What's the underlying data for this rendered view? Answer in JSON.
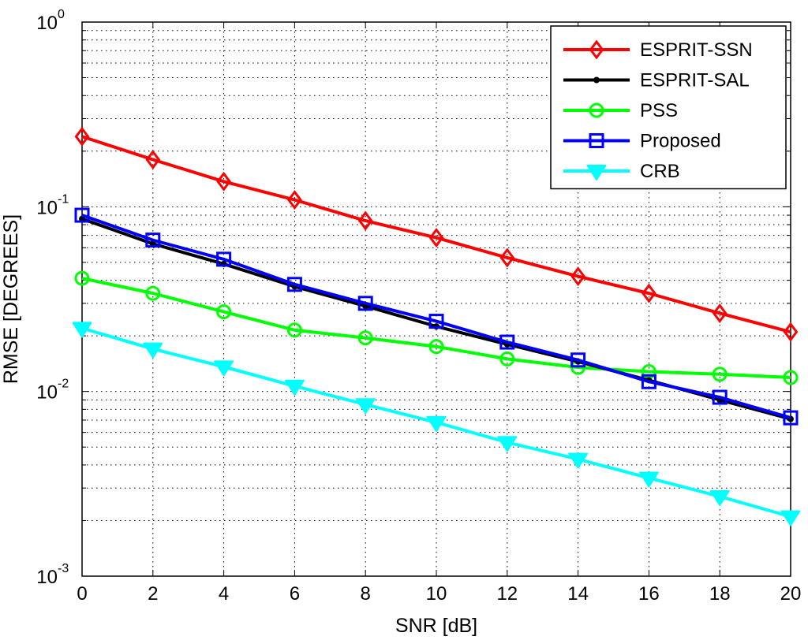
{
  "chart_data": {
    "type": "line",
    "y_scale": "log",
    "grid": true,
    "xlabel": "SNR [dB]",
    "ylabel": "RMSE [DEGREES]",
    "xlim": [
      0,
      20
    ],
    "ylim": [
      0.001,
      1
    ],
    "x_ticks": [
      "0",
      "2",
      "4",
      "6",
      "8",
      "10",
      "12",
      "14",
      "16",
      "18",
      "20"
    ],
    "y_ticks": [
      {
        "base": "10",
        "exp": "-3"
      },
      {
        "base": "10",
        "exp": "-2"
      },
      {
        "base": "10",
        "exp": "-1"
      },
      {
        "base": "10",
        "exp": "0"
      }
    ],
    "legend_position": "top-right",
    "x": [
      0,
      2,
      4,
      6,
      8,
      10,
      12,
      14,
      16,
      18,
      20
    ],
    "series": [
      {
        "name": "ESPRIT-SSN",
        "color": "#ff0000",
        "marker": "diamond",
        "values": [
          0.24,
          0.18,
          0.137,
          0.109,
          0.084,
          0.068,
          0.053,
          0.042,
          0.034,
          0.0265,
          0.021
        ]
      },
      {
        "name": "ESPRIT-SAL",
        "color": "#000000",
        "marker": "small-dot",
        "values": [
          0.086,
          0.063,
          0.049,
          0.037,
          0.029,
          0.0225,
          0.018,
          0.0145,
          0.0115,
          0.009,
          0.0071
        ]
      },
      {
        "name": "PSS",
        "color": "#00ff00",
        "marker": "circle",
        "values": [
          0.041,
          0.034,
          0.027,
          0.0215,
          0.0195,
          0.0175,
          0.015,
          0.0135,
          0.0128,
          0.0124,
          0.0119
        ]
      },
      {
        "name": "Proposed",
        "color": "#0000ff",
        "marker": "square",
        "values": [
          0.09,
          0.066,
          0.052,
          0.038,
          0.03,
          0.024,
          0.0185,
          0.0148,
          0.0113,
          0.0093,
          0.0072
        ]
      },
      {
        "name": "CRB",
        "color": "#00ffff",
        "marker": "triangle-down",
        "values": [
          0.022,
          0.017,
          0.0136,
          0.0107,
          0.0085,
          0.0068,
          0.0053,
          0.0043,
          0.0034,
          0.0027,
          0.0021
        ]
      }
    ]
  }
}
